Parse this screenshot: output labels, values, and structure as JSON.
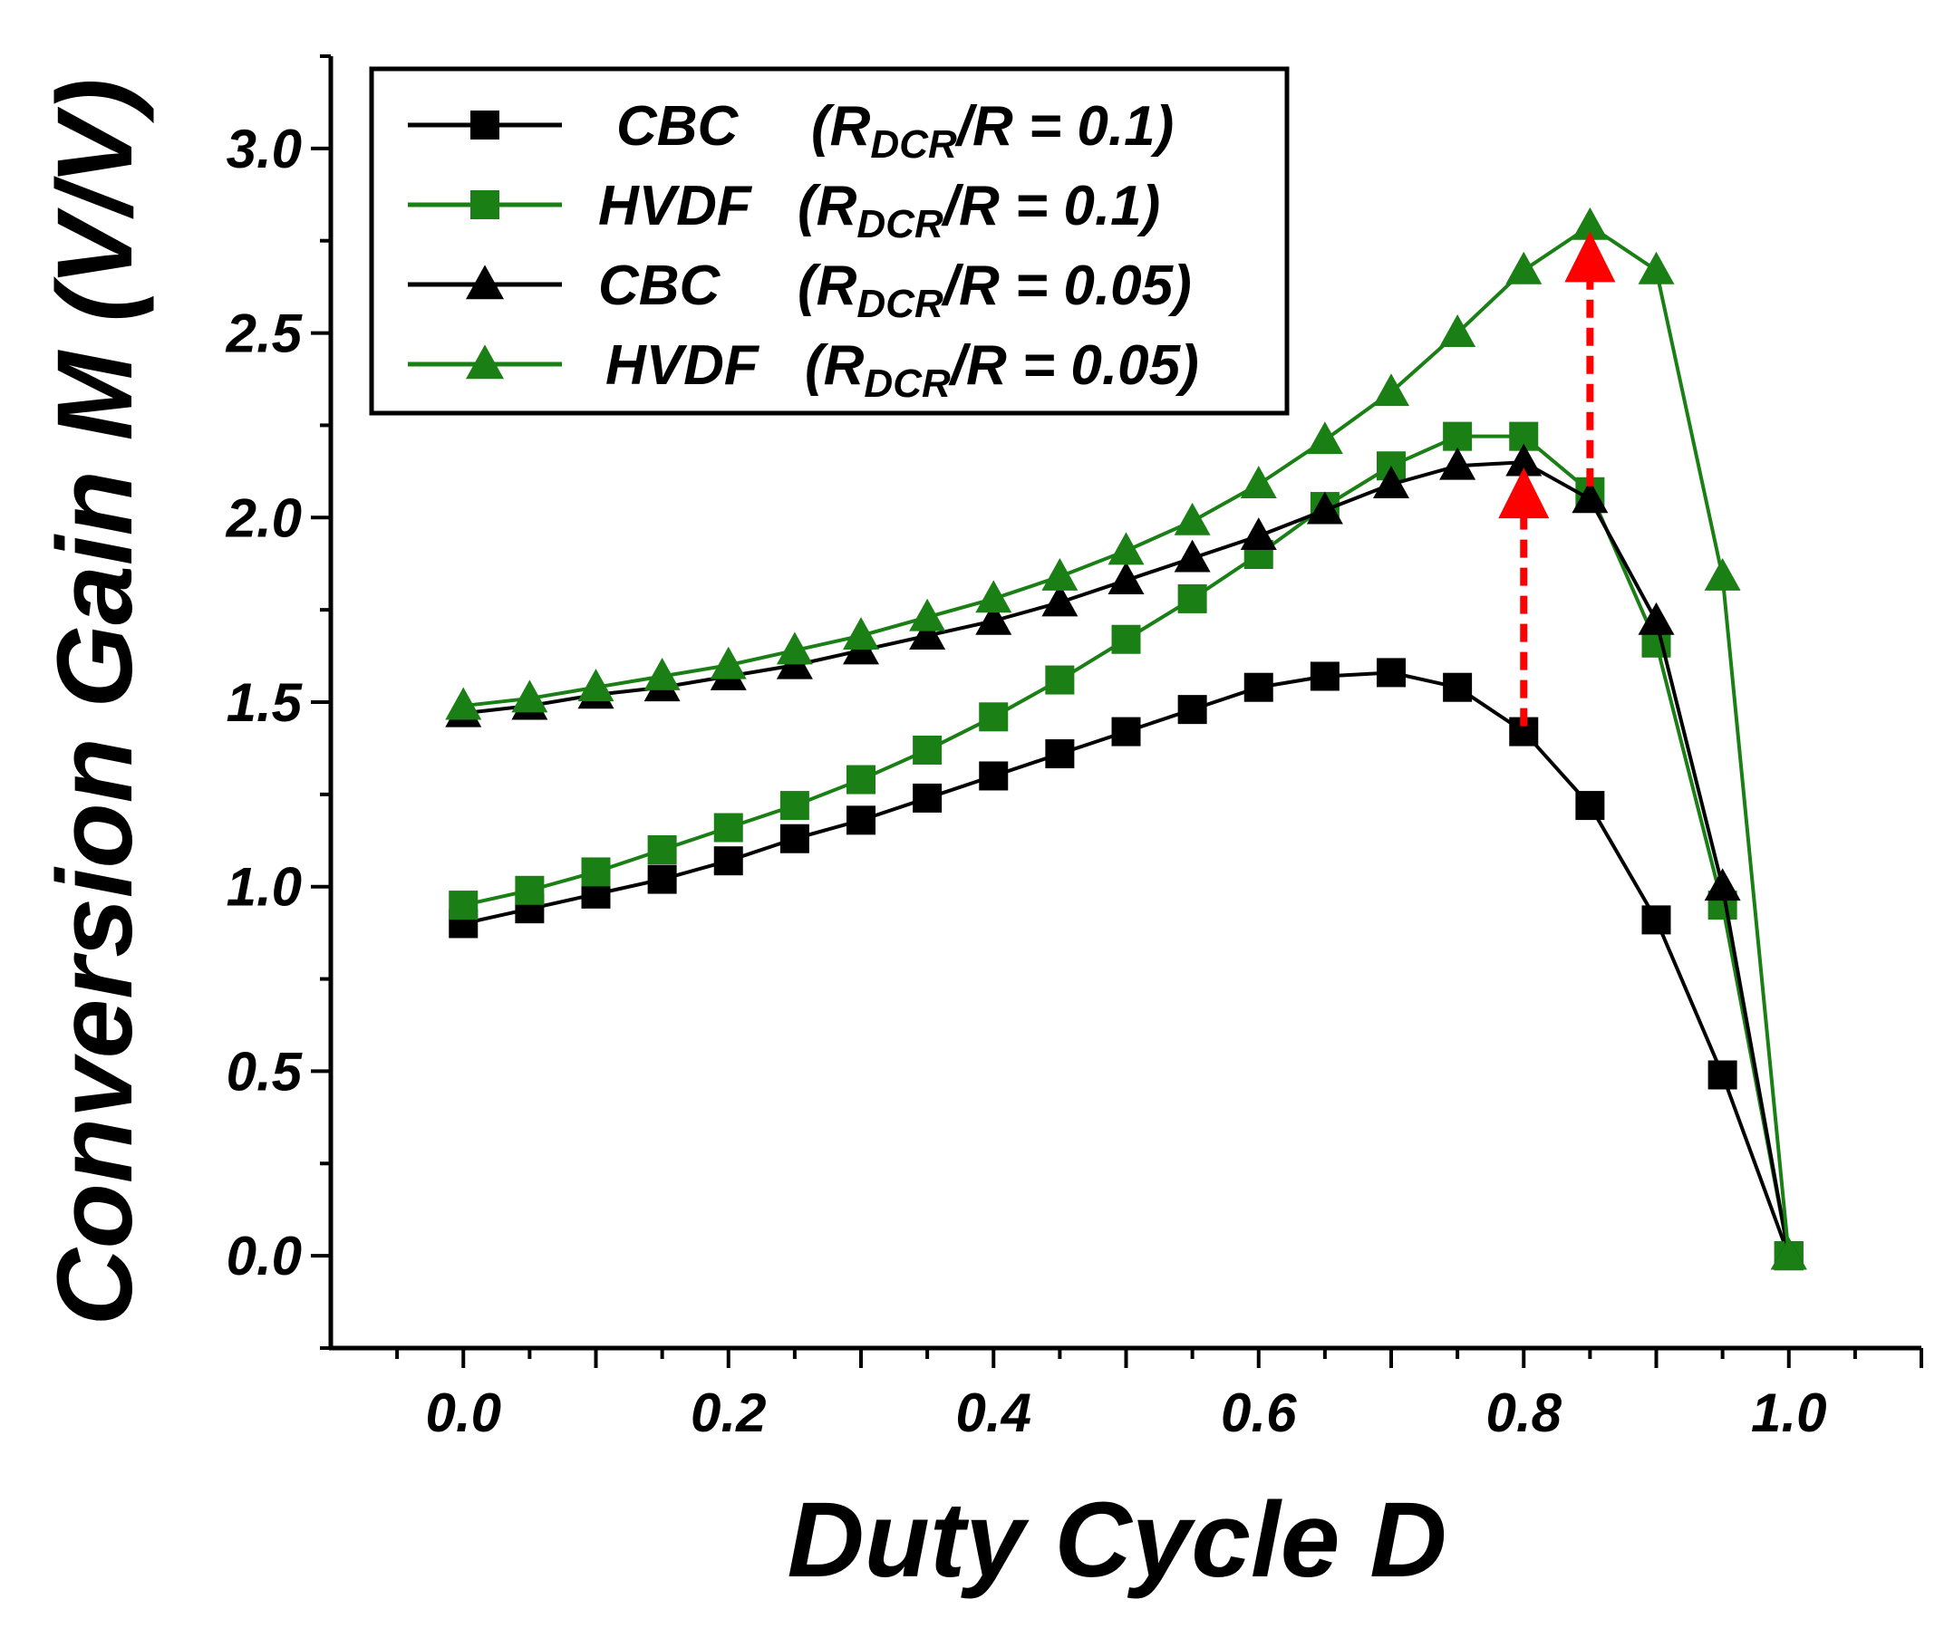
{
  "chart_data": {
    "type": "line",
    "title": "",
    "xlabel": "Duty Cycle D",
    "ylabel": "Conversion Gain M (V/V)",
    "xlim": [
      -0.1,
      1.1
    ],
    "ylim": [
      -0.25,
      3.25
    ],
    "xticks": [
      "0.0",
      "0.2",
      "0.4",
      "0.6",
      "0.8",
      "1.0"
    ],
    "xtick_values": [
      0.0,
      0.2,
      0.4,
      0.6,
      0.8,
      1.0
    ],
    "yticks": [
      "0.0",
      "0.5",
      "1.0",
      "1.5",
      "2.0",
      "2.5",
      "3.0"
    ],
    "ytick_values": [
      0.0,
      0.5,
      1.0,
      1.5,
      2.0,
      2.5,
      3.0
    ],
    "grid": false,
    "legend_position": "top-left",
    "x": [
      0.0,
      0.05,
      0.1,
      0.15,
      0.2,
      0.25,
      0.3,
      0.35,
      0.4,
      0.45,
      0.5,
      0.55,
      0.6,
      0.65,
      0.7,
      0.75,
      0.8,
      0.85,
      0.9,
      0.95,
      1.0
    ],
    "series": [
      {
        "legend": {
          "prefix": "CBC",
          "paren_open": "(R",
          "sub": "DCR",
          "suffix": "/R = 0.1)"
        },
        "color": "#000000",
        "marker": "square",
        "values": [
          0.9,
          0.94,
          0.98,
          1.02,
          1.07,
          1.13,
          1.18,
          1.24,
          1.3,
          1.36,
          1.42,
          1.48,
          1.54,
          1.57,
          1.58,
          1.54,
          1.42,
          1.22,
          0.91,
          0.49,
          0.0
        ]
      },
      {
        "legend": {
          "prefix": "HVDF",
          "paren_open": "(R",
          "sub": "DCR",
          "suffix": "/R = 0.1)"
        },
        "color": "#1a7f14",
        "marker": "square",
        "values": [
          0.95,
          0.99,
          1.04,
          1.1,
          1.16,
          1.22,
          1.29,
          1.37,
          1.46,
          1.56,
          1.67,
          1.78,
          1.9,
          2.03,
          2.14,
          2.22,
          2.22,
          2.07,
          1.66,
          0.95,
          0.0
        ]
      },
      {
        "legend": {
          "prefix": "CBC",
          "paren_open": "(R",
          "sub": "DCR",
          "suffix": "/R = 0.05)"
        },
        "color": "#000000",
        "marker": "triangle",
        "values": [
          1.47,
          1.49,
          1.52,
          1.54,
          1.57,
          1.6,
          1.64,
          1.68,
          1.72,
          1.77,
          1.83,
          1.89,
          1.95,
          2.02,
          2.09,
          2.14,
          2.15,
          2.05,
          1.72,
          1.0,
          0.0
        ]
      },
      {
        "legend": {
          "prefix": "HVDF",
          "paren_open": "(R",
          "sub": "DCR",
          "suffix": "/R = 0.05)"
        },
        "color": "#1a7f14",
        "marker": "triangle",
        "values": [
          1.49,
          1.51,
          1.54,
          1.57,
          1.6,
          1.64,
          1.68,
          1.73,
          1.78,
          1.84,
          1.91,
          1.99,
          2.09,
          2.21,
          2.34,
          2.5,
          2.67,
          2.79,
          2.67,
          1.84,
          0.0
        ]
      }
    ],
    "annotations": [
      {
        "type": "dashed-arrow",
        "color": "#ff0000",
        "x": 0.8,
        "from": 1.42,
        "to": 2.15
      },
      {
        "type": "dashed-arrow",
        "color": "#ff0000",
        "x": 0.85,
        "from": 2.07,
        "to": 2.79
      }
    ]
  }
}
